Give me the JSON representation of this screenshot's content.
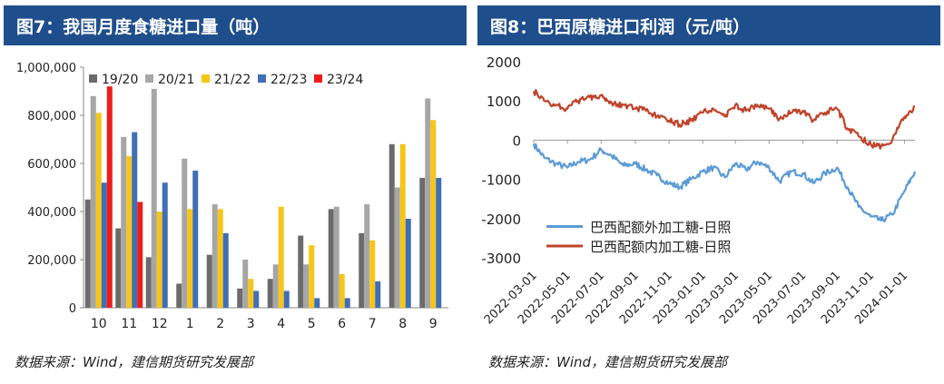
{
  "left": {
    "title": "图7：我国月度食糖进口量（吨）",
    "source": "数据来源：Wind，建信期货研究发展部"
  },
  "right": {
    "title": "图8：巴西原糖进口利润（元/吨）",
    "source": "数据来源：Wind，建信期货研究发展部"
  },
  "chart_data": [
    {
      "type": "bar",
      "title": "我国月度食糖进口量（吨）",
      "categories": [
        "10",
        "11",
        "12",
        "1",
        "2",
        "3",
        "4",
        "5",
        "6",
        "7",
        "8",
        "9"
      ],
      "ylim": [
        0,
        1000000
      ],
      "yticks": [
        0,
        200000,
        400000,
        600000,
        800000,
        1000000
      ],
      "ytick_labels": [
        "0",
        "200,000",
        "400,000",
        "600,000",
        "800,000",
        "1,000,000"
      ],
      "legend_position": "top",
      "series": [
        {
          "name": "19/20",
          "color": "#6b6b6b",
          "values": [
            450000,
            330000,
            210000,
            100000,
            220000,
            80000,
            120000,
            300000,
            410000,
            310000,
            680000,
            540000
          ]
        },
        {
          "name": "20/21",
          "color": "#a6a6a6",
          "values": [
            880000,
            710000,
            910000,
            620000,
            430000,
            200000,
            180000,
            180000,
            420000,
            430000,
            500000,
            870000
          ]
        },
        {
          "name": "21/22",
          "color": "#f5c518",
          "values": [
            810000,
            630000,
            400000,
            410000,
            410000,
            120000,
            420000,
            260000,
            140000,
            280000,
            680000,
            780000
          ]
        },
        {
          "name": "22/23",
          "color": "#3f6fb5",
          "values": [
            520000,
            730000,
            520000,
            570000,
            310000,
            70000,
            70000,
            40000,
            40000,
            110000,
            370000,
            540000
          ]
        },
        {
          "name": "23/24",
          "color": "#ee1c1c",
          "values": [
            920000,
            440000,
            null,
            null,
            null,
            null,
            null,
            null,
            null,
            null,
            null,
            null
          ]
        }
      ]
    },
    {
      "type": "line",
      "title": "巴西原糖进口利润（元/吨）",
      "ylim": [
        -3000,
        2000
      ],
      "yticks": [
        -3000,
        -2000,
        -1000,
        0,
        1000,
        2000
      ],
      "ytick_labels": [
        "-3000",
        "-2000",
        "-1000",
        "0",
        "1000",
        "2000"
      ],
      "xlim": [
        "2022-03-01",
        "2024-01-20"
      ],
      "xtick_labels": [
        "2022-03-01",
        "2022-05-01",
        "2022-07-01",
        "2022-09-01",
        "2022-11-01",
        "2023-01-01",
        "2023-03-01",
        "2023-05-01",
        "2023-07-01",
        "2023-09-01",
        "2023-11-01",
        "2024-01-01"
      ],
      "legend_position": "lower-left",
      "series": [
        {
          "name": "巴西配额外加工糖-日照",
          "color": "#5b9bd5",
          "x": [
            "2022-03-01",
            "2022-03-20",
            "2022-04-10",
            "2022-05-01",
            "2022-05-20",
            "2022-06-10",
            "2022-07-01",
            "2022-07-20",
            "2022-08-10",
            "2022-09-01",
            "2022-09-20",
            "2022-10-10",
            "2022-11-01",
            "2022-11-20",
            "2022-12-10",
            "2023-01-01",
            "2023-01-20",
            "2023-02-10",
            "2023-03-01",
            "2023-03-20",
            "2023-04-10",
            "2023-05-01",
            "2023-05-20",
            "2023-06-10",
            "2023-07-01",
            "2023-07-20",
            "2023-08-10",
            "2023-09-01",
            "2023-09-20",
            "2023-10-10",
            "2023-11-01",
            "2023-11-20",
            "2023-12-10",
            "2024-01-01",
            "2024-01-20"
          ],
          "values": [
            -100,
            -450,
            -600,
            -700,
            -550,
            -500,
            -250,
            -400,
            -650,
            -600,
            -750,
            -900,
            -1100,
            -1200,
            -1000,
            -800,
            -700,
            -950,
            -600,
            -750,
            -550,
            -700,
            -1050,
            -800,
            -850,
            -1100,
            -850,
            -700,
            -1200,
            -1700,
            -1950,
            -2050,
            -1900,
            -1300,
            -800
          ]
        },
        {
          "name": "巴西配额内加工糖-日照",
          "color": "#c0432a",
          "x": [
            "2022-03-01",
            "2022-03-20",
            "2022-04-10",
            "2022-05-01",
            "2022-05-20",
            "2022-06-10",
            "2022-07-01",
            "2022-07-20",
            "2022-08-10",
            "2022-09-01",
            "2022-09-20",
            "2022-10-10",
            "2022-11-01",
            "2022-11-20",
            "2022-12-10",
            "2023-01-01",
            "2023-01-20",
            "2023-02-10",
            "2023-03-01",
            "2023-03-20",
            "2023-04-10",
            "2023-05-01",
            "2023-05-20",
            "2023-06-10",
            "2023-07-01",
            "2023-07-20",
            "2023-08-10",
            "2023-09-01",
            "2023-09-20",
            "2023-10-10",
            "2023-11-01",
            "2023-11-20",
            "2023-12-10",
            "2024-01-01",
            "2024-01-20"
          ],
          "values": [
            1250,
            1000,
            900,
            800,
            1000,
            1100,
            1150,
            950,
            900,
            800,
            750,
            600,
            500,
            400,
            500,
            700,
            800,
            600,
            900,
            750,
            900,
            800,
            550,
            700,
            750,
            500,
            700,
            800,
            300,
            100,
            -100,
            -150,
            0,
            600,
            850
          ]
        }
      ]
    }
  ]
}
